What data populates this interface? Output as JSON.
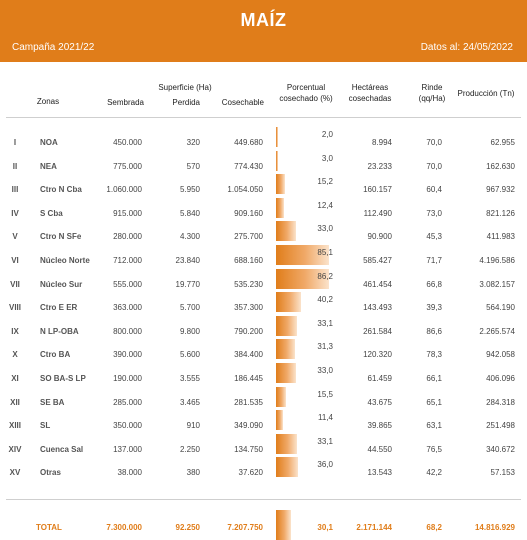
{
  "header": {
    "title": "MAÍZ",
    "campaign": "Campaña 2021/22",
    "date": "Datos al: 24/05/2022"
  },
  "columns": {
    "zonas": "Zonas",
    "superficie_group": "Superficie (Ha)",
    "sembrada": "Sembrada",
    "perdida": "Perdida",
    "cosechable": "Cosechable",
    "porcentual": "Porcentual cosechado (%)",
    "hectareas": "Hectáreas cosechadas",
    "rinde": "Rinde (qq/Ha)",
    "produccion": "Producción (Tn)"
  },
  "rows": [
    {
      "roman": "I",
      "zona": "NOA",
      "sembrada": "450.000",
      "perdida": "320",
      "cosechable": "449.680",
      "pct": "2,0",
      "pct_value": 2.0,
      "hectareas": "8.994",
      "rinde": "70,0",
      "produccion": "62.955"
    },
    {
      "roman": "II",
      "zona": "NEA",
      "sembrada": "775.000",
      "perdida": "570",
      "cosechable": "774.430",
      "pct": "3,0",
      "pct_value": 3.0,
      "hectareas": "23.233",
      "rinde": "70,0",
      "produccion": "162.630"
    },
    {
      "roman": "III",
      "zona": "Ctro N Cba",
      "sembrada": "1.060.000",
      "perdida": "5.950",
      "cosechable": "1.054.050",
      "pct": "15,2",
      "pct_value": 15.2,
      "hectareas": "160.157",
      "rinde": "60,4",
      "produccion": "967.932"
    },
    {
      "roman": "IV",
      "zona": "S Cba",
      "sembrada": "915.000",
      "perdida": "5.840",
      "cosechable": "909.160",
      "pct": "12,4",
      "pct_value": 12.4,
      "hectareas": "112.490",
      "rinde": "73,0",
      "produccion": "821.126"
    },
    {
      "roman": "V",
      "zona": "Ctro N SFe",
      "sembrada": "280.000",
      "perdida": "4.300",
      "cosechable": "275.700",
      "pct": "33,0",
      "pct_value": 33.0,
      "hectareas": "90.900",
      "rinde": "45,3",
      "produccion": "411.983"
    },
    {
      "roman": "VI",
      "zona": "Núcleo Norte",
      "sembrada": "712.000",
      "perdida": "23.840",
      "cosechable": "688.160",
      "pct": "85,1",
      "pct_value": 85.1,
      "hectareas": "585.427",
      "rinde": "71,7",
      "produccion": "4.196.586"
    },
    {
      "roman": "VII",
      "zona": "Núcleo Sur",
      "sembrada": "555.000",
      "perdida": "19.770",
      "cosechable": "535.230",
      "pct": "86,2",
      "pct_value": 86.2,
      "hectareas": "461.454",
      "rinde": "66,8",
      "produccion": "3.082.157"
    },
    {
      "roman": "VIII",
      "zona": "Ctro E ER",
      "sembrada": "363.000",
      "perdida": "5.700",
      "cosechable": "357.300",
      "pct": "40,2",
      "pct_value": 40.2,
      "hectareas": "143.493",
      "rinde": "39,3",
      "produccion": "564.190"
    },
    {
      "roman": "IX",
      "zona": "N LP-OBA",
      "sembrada": "800.000",
      "perdida": "9.800",
      "cosechable": "790.200",
      "pct": "33,1",
      "pct_value": 33.1,
      "hectareas": "261.584",
      "rinde": "86,6",
      "produccion": "2.265.574"
    },
    {
      "roman": "X",
      "zona": "Ctro BA",
      "sembrada": "390.000",
      "perdida": "5.600",
      "cosechable": "384.400",
      "pct": "31,3",
      "pct_value": 31.3,
      "hectareas": "120.320",
      "rinde": "78,3",
      "produccion": "942.058"
    },
    {
      "roman": "XI",
      "zona": "SO BA-S LP",
      "sembrada": "190.000",
      "perdida": "3.555",
      "cosechable": "186.445",
      "pct": "33,0",
      "pct_value": 33.0,
      "hectareas": "61.459",
      "rinde": "66,1",
      "produccion": "406.096"
    },
    {
      "roman": "XII",
      "zona": "SE BA",
      "sembrada": "285.000",
      "perdida": "3.465",
      "cosechable": "281.535",
      "pct": "15,5",
      "pct_value": 15.5,
      "hectareas": "43.675",
      "rinde": "65,1",
      "produccion": "284.318"
    },
    {
      "roman": "XIII",
      "zona": "SL",
      "sembrada": "350.000",
      "perdida": "910",
      "cosechable": "349.090",
      "pct": "11,4",
      "pct_value": 11.4,
      "hectareas": "39.865",
      "rinde": "63,1",
      "produccion": "251.498"
    },
    {
      "roman": "XIV",
      "zona": "Cuenca Sal",
      "sembrada": "137.000",
      "perdida": "2.250",
      "cosechable": "134.750",
      "pct": "33,1",
      "pct_value": 33.1,
      "hectareas": "44.550",
      "rinde": "76,5",
      "produccion": "340.672"
    },
    {
      "roman": "XV",
      "zona": "Otras",
      "sembrada": "38.000",
      "perdida": "380",
      "cosechable": "37.620",
      "pct": "36,0",
      "pct_value": 36.0,
      "hectareas": "13.543",
      "rinde": "42,2",
      "produccion": "57.153"
    }
  ],
  "total": {
    "label": "TOTAL",
    "sembrada": "7.300.000",
    "perdida": "92.250",
    "cosechable": "7.207.750",
    "pct": "30,1",
    "pct_value": 30.1,
    "hectareas": "2.171.144",
    "rinde": "68,2",
    "produccion": "14.816.929"
  },
  "colors": {
    "accent": "#E07D1A",
    "bar_light": "#FBE3CB"
  }
}
